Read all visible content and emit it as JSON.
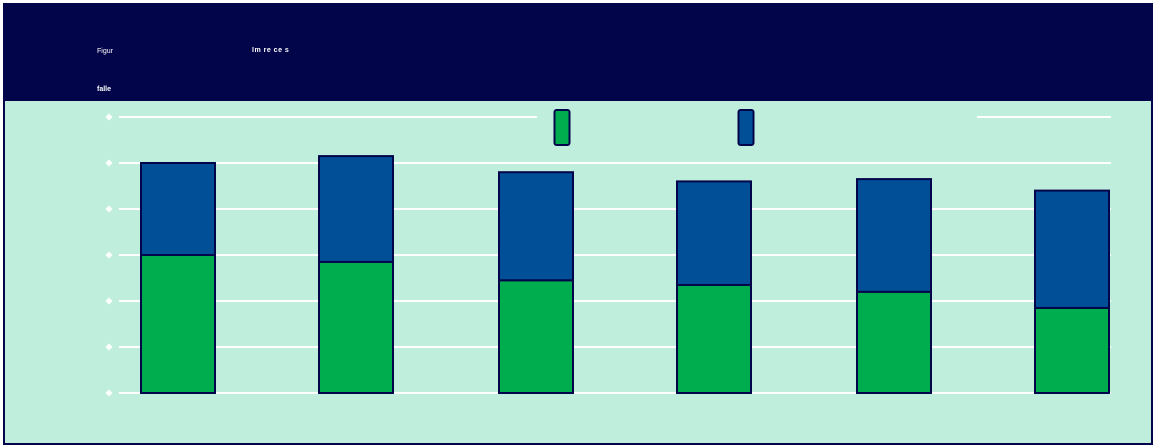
{
  "header": {
    "figure_label": "Figur",
    "title_fragment": "Im re ce s",
    "subtitle_fragment": "falle"
  },
  "colors": {
    "header_bg": "#03054a",
    "plot_bg": "#bfeedd",
    "grid": "#ffffff",
    "outline": "#03054a",
    "series_green": "#00ad4e",
    "series_blue": "#004f97"
  },
  "legend": {
    "position": "top-center"
  },
  "chart_data": {
    "type": "bar",
    "stacked": true,
    "grid": true,
    "ylim": [
      0,
      6
    ],
    "categories": [
      "",
      "",
      "",
      "",
      "",
      ""
    ],
    "series": [
      {
        "color": "#00ad4e",
        "values": [
          3.0,
          2.85,
          2.45,
          2.35,
          2.2,
          1.85
        ]
      },
      {
        "color": "#004f97",
        "values": [
          2.0,
          2.3,
          2.35,
          2.25,
          2.45,
          2.55
        ]
      }
    ]
  }
}
